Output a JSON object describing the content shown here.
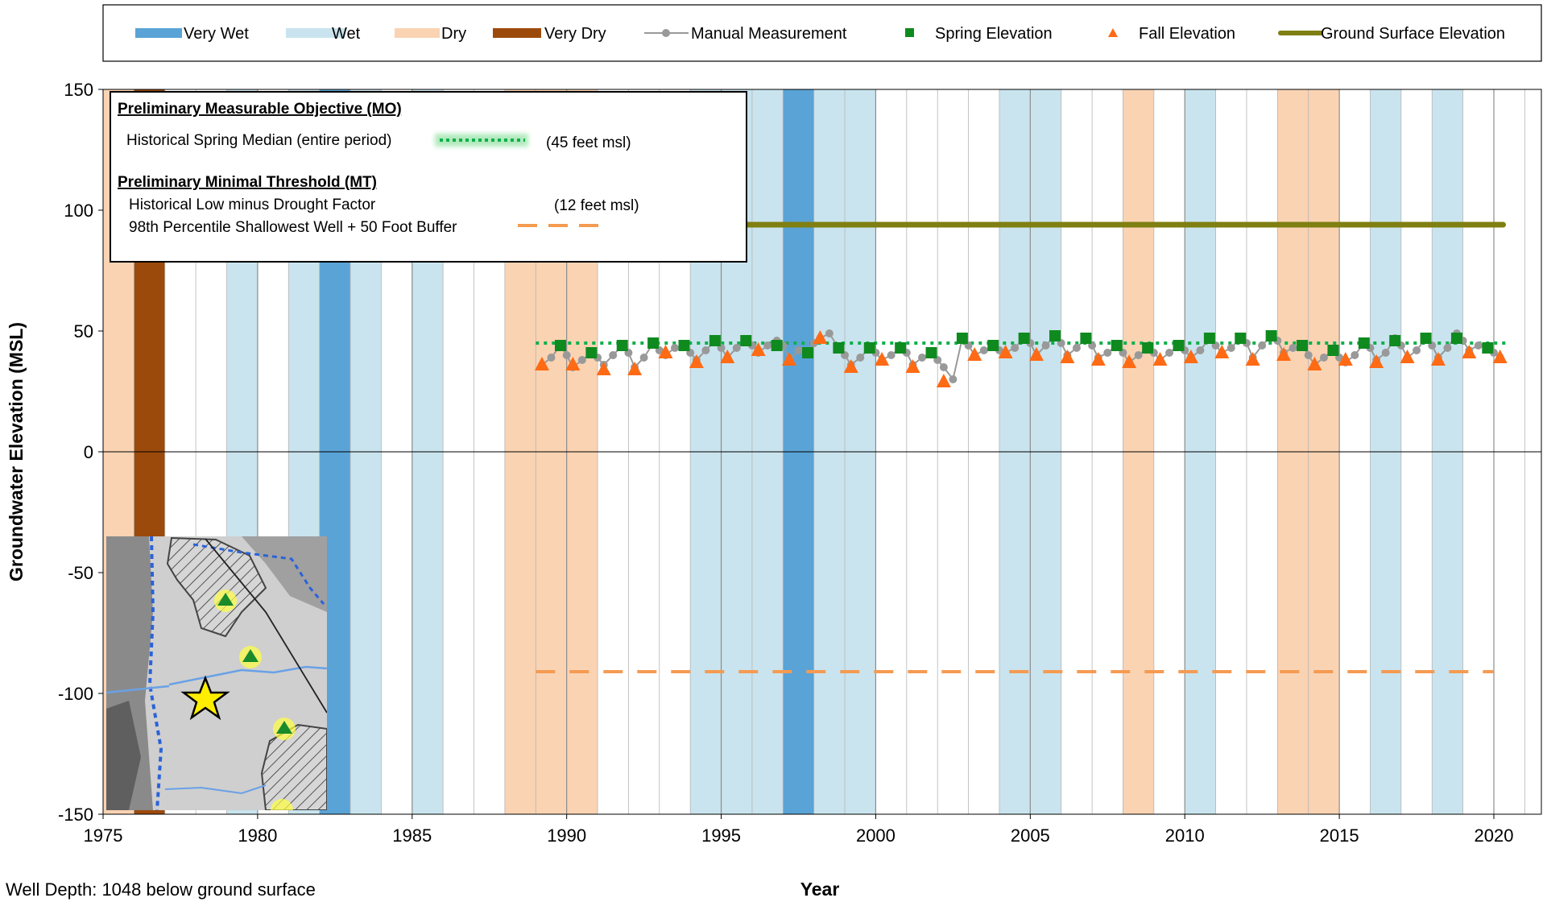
{
  "chart_data": {
    "type": "line",
    "xlabel": "Year",
    "ylabel": "Groundwater Elevation (MSL)",
    "xlim": [
      1975,
      2022
    ],
    "ylim": [
      -150,
      150
    ],
    "x_ticks": [
      1975,
      1980,
      1985,
      1990,
      1995,
      2000,
      2005,
      2010,
      2015,
      2020
    ],
    "y_ticks": [
      150,
      100,
      50,
      0,
      -50,
      -100,
      -150
    ],
    "grid": "vertical gridlines every year, horizontal line at 0",
    "legend": {
      "position": "top",
      "entries": [
        {
          "label": "Very Wet",
          "color": "#5aa3d6",
          "kind": "band"
        },
        {
          "label": "Wet",
          "color": "#c9e4ee",
          "kind": "band"
        },
        {
          "label": "Dry",
          "color": "#fad3b3",
          "kind": "band"
        },
        {
          "label": "Very Dry",
          "color": "#9c4a0c",
          "kind": "band"
        },
        {
          "label": "Manual Measurement",
          "color": "#999999",
          "kind": "line-marker"
        },
        {
          "label": "Spring Elevation",
          "color": "#0f8a1f",
          "kind": "square"
        },
        {
          "label": "Fall Elevation",
          "color": "#ff6a14",
          "kind": "triangle"
        },
        {
          "label": "Ground Surface Elevation",
          "color": "#7f7f12",
          "kind": "line"
        }
      ]
    },
    "water_year_bands": [
      {
        "start": 1975,
        "end": 1976,
        "class": "Dry"
      },
      {
        "start": 1976,
        "end": 1977,
        "class": "Very Dry"
      },
      {
        "start": 1979,
        "end": 1980,
        "class": "Wet"
      },
      {
        "start": 1981,
        "end": 1982,
        "class": "Wet"
      },
      {
        "start": 1982,
        "end": 1983,
        "class": "Very Wet"
      },
      {
        "start": 1983,
        "end": 1984,
        "class": "Wet"
      },
      {
        "start": 1985,
        "end": 1986,
        "class": "Wet"
      },
      {
        "start": 1988,
        "end": 1991,
        "class": "Dry"
      },
      {
        "start": 1994,
        "end": 1997,
        "class": "Wet"
      },
      {
        "start": 1997,
        "end": 1998,
        "class": "Very Wet"
      },
      {
        "start": 1998,
        "end": 2000,
        "class": "Wet"
      },
      {
        "start": 2004,
        "end": 2006,
        "class": "Wet"
      },
      {
        "start": 2008,
        "end": 2009,
        "class": "Dry"
      },
      {
        "start": 2010,
        "end": 2011,
        "class": "Wet"
      },
      {
        "start": 2013,
        "end": 2015,
        "class": "Dry"
      },
      {
        "start": 2016,
        "end": 2017,
        "class": "Wet"
      },
      {
        "start": 2018,
        "end": 2019,
        "class": "Wet"
      }
    ],
    "series": [
      {
        "name": "Spring Elevation",
        "color": "#0f8a1f",
        "marker": "square",
        "x": [
          1989.8,
          1990.8,
          1991.8,
          1992.8,
          1993.8,
          1994.8,
          1995.8,
          1996.8,
          1997.8,
          1998.8,
          1999.8,
          2000.8,
          2001.8,
          2002.8,
          2003.8,
          2004.8,
          2005.8,
          2006.8,
          2007.8,
          2008.8,
          2009.8,
          2010.8,
          2011.8,
          2012.8,
          2013.8,
          2014.8,
          2015.8,
          2016.8,
          2017.8,
          2018.8,
          2019.8
        ],
        "values": [
          44,
          41,
          44,
          45,
          44,
          46,
          46,
          44,
          41,
          43,
          43,
          43,
          41,
          47,
          44,
          47,
          48,
          47,
          44,
          43,
          44,
          47,
          47,
          48,
          44,
          42,
          45,
          46,
          47,
          47,
          43
        ]
      },
      {
        "name": "Fall Elevation",
        "color": "#ff6a14",
        "marker": "triangle",
        "x": [
          1989.2,
          1990.2,
          1991.2,
          1992.2,
          1993.2,
          1994.2,
          1995.2,
          1996.2,
          1997.2,
          1998.2,
          1999.2,
          2000.2,
          2001.2,
          2002.2,
          2003.2,
          2004.2,
          2005.2,
          2006.2,
          2007.2,
          2008.2,
          2009.2,
          2010.2,
          2011.2,
          2012.2,
          2013.2,
          2014.2,
          2015.2,
          2016.2,
          2017.2,
          2018.2,
          2019.2,
          2020.2
        ],
        "values": [
          36,
          36,
          34,
          34,
          41,
          37,
          39,
          42,
          38,
          47,
          35,
          38,
          35,
          29,
          40,
          41,
          40,
          39,
          38,
          37,
          38,
          39,
          41,
          38,
          40,
          36,
          38,
          37,
          39,
          38,
          41,
          39
        ]
      },
      {
        "name": "Manual Measurement",
        "color": "#999999",
        "marker": "circle",
        "x": [
          1989.2,
          1989.5,
          1989.8,
          1990.0,
          1990.2,
          1990.5,
          1990.8,
          1991.0,
          1991.2,
          1991.5,
          1991.8,
          1992.0,
          1992.2,
          1992.5,
          1992.8,
          1993.0,
          1993.2,
          1993.5,
          1993.8,
          1994.0,
          1994.2,
          1994.5,
          1994.8,
          1995.0,
          1995.2,
          1995.5,
          1995.8,
          1996.0,
          1996.2,
          1996.5,
          1996.8,
          1997.0,
          1997.2,
          1997.5,
          1997.8,
          1998.0,
          1998.2,
          1998.5,
          1998.8,
          1999.0,
          1999.2,
          1999.5,
          1999.8,
          2000.0,
          2000.2,
          2000.5,
          2000.8,
          2001.0,
          2001.2,
          2001.5,
          2001.8,
          2002.0,
          2002.2,
          2002.5,
          2002.8,
          2003.0,
          2003.2,
          2003.5,
          2003.8,
          2004.0,
          2004.2,
          2004.5,
          2004.8,
          2005.0,
          2005.2,
          2005.5,
          2005.8,
          2006.0,
          2006.2,
          2006.5,
          2006.8,
          2007.0,
          2007.2,
          2007.5,
          2007.8,
          2008.0,
          2008.2,
          2008.5,
          2008.8,
          2009.0,
          2009.2,
          2009.5,
          2009.8,
          2010.0,
          2010.2,
          2010.5,
          2010.8,
          2011.0,
          2011.2,
          2011.5,
          2011.8,
          2012.0,
          2012.2,
          2012.5,
          2012.8,
          2013.0,
          2013.2,
          2013.5,
          2013.8,
          2014.0,
          2014.2,
          2014.5,
          2014.8,
          2015.0,
          2015.2,
          2015.5,
          2015.8,
          2016.0,
          2016.2,
          2016.5,
          2016.8,
          2017.0,
          2017.2,
          2017.5,
          2017.8,
          2018.0,
          2018.2,
          2018.5,
          2018.8,
          2019.0,
          2019.2,
          2019.5,
          2019.8,
          2020.0,
          2020.2
        ],
        "values": [
          36,
          39,
          44,
          40,
          35,
          38,
          41,
          39,
          36,
          40,
          44,
          41,
          35,
          39,
          45,
          42,
          40,
          43,
          44,
          41,
          38,
          42,
          46,
          43,
          39,
          43,
          46,
          44,
          41,
          44,
          46,
          44,
          38,
          42,
          41,
          45,
          47,
          49,
          43,
          40,
          36,
          39,
          43,
          41,
          38,
          40,
          43,
          41,
          36,
          39,
          41,
          38,
          35,
          30,
          47,
          44,
          40,
          42,
          44,
          42,
          41,
          43,
          47,
          45,
          40,
          44,
          48,
          45,
          40,
          43,
          47,
          44,
          39,
          41,
          44,
          41,
          37,
          40,
          43,
          41,
          38,
          41,
          44,
          42,
          39,
          42,
          47,
          44,
          41,
          43,
          47,
          45,
          39,
          44,
          48,
          46,
          41,
          43,
          44,
          40,
          36,
          39,
          42,
          39,
          37,
          40,
          45,
          43,
          38,
          41,
          47,
          44,
          39,
          42,
          47,
          44,
          39,
          43,
          49,
          46,
          42,
          44,
          43,
          41,
          39
        ]
      },
      {
        "name": "Ground Surface Elevation",
        "color": "#7f7f12",
        "marker": "none",
        "x": [
          1976,
          2020.3
        ],
        "values": [
          94,
          94
        ]
      }
    ],
    "thresholds": [
      {
        "name": "Historical Spring Median (entire period)",
        "value": 45,
        "x": [
          1989,
          2020.5
        ],
        "color": "#1ec850"
      },
      {
        "name": "Historical Low minus Drought Factor",
        "value": 12,
        "x": [
          1989,
          2020.3
        ],
        "color": "#e6a0a8"
      },
      {
        "name": "98th Percentile Shallowest Well + 50 Foot Buffer",
        "value": -91,
        "x": [
          1989,
          2020
        ],
        "color": "#f59b52"
      }
    ]
  },
  "info_box": {
    "mo_title": "Preliminary Measurable Objective (MO)",
    "mo_item": "Historical Spring Median (entire period)",
    "mo_value": "(45 feet msl)",
    "mt_title": "Preliminary Minimal Threshold (MT)",
    "mt_item1": "Historical Low minus Drought Factor",
    "mt_value1": "(12 feet msl)",
    "mt_item2": "98th Percentile Shallowest Well + 50 Foot Buffer"
  },
  "footer": {
    "well_depth_label": "Well Depth:",
    "well_depth_value": "1048 below ground surface"
  },
  "inset_map": {
    "icons": [
      "star-marker-icon",
      "triangle-well-icon"
    ]
  }
}
